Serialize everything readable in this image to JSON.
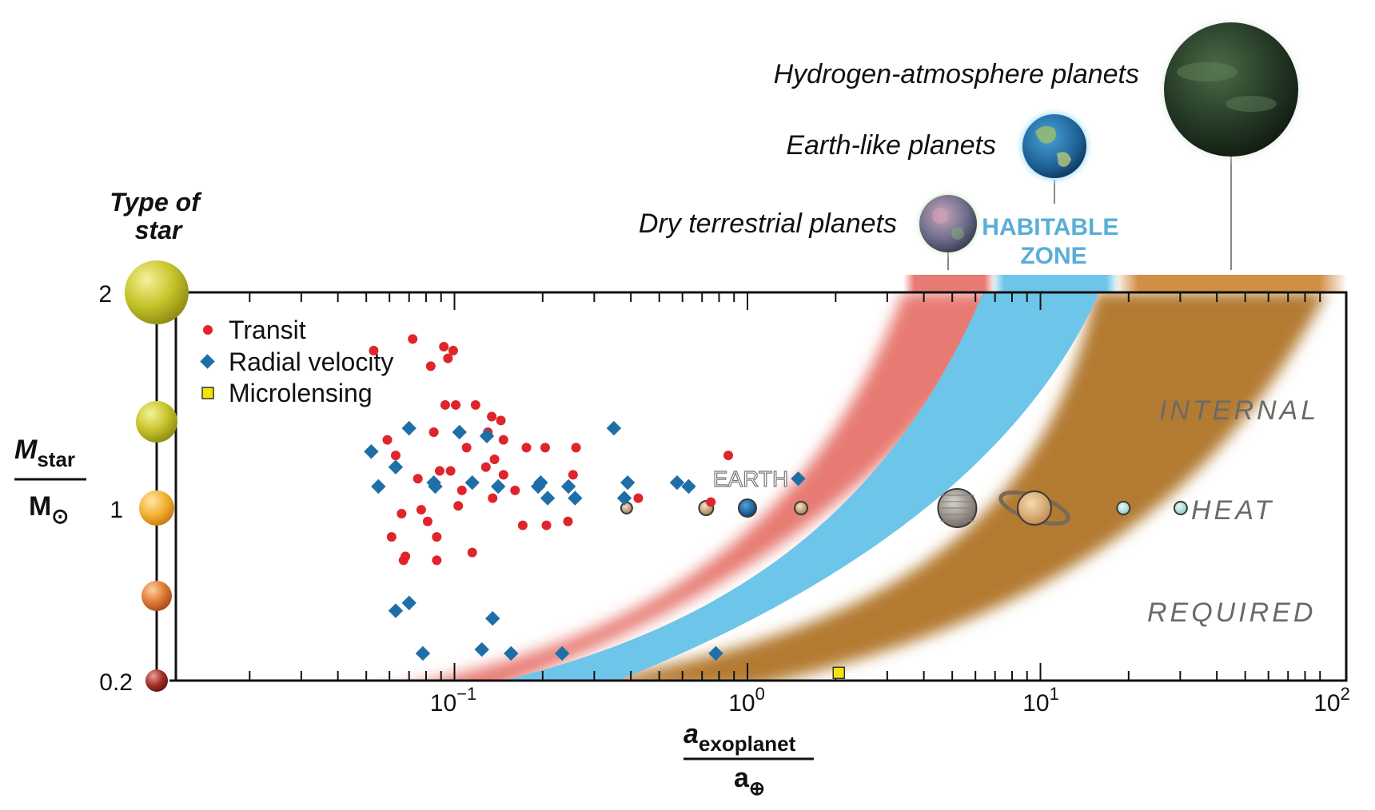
{
  "chart_data": {
    "type": "scatter",
    "x_scale": "log",
    "xlim": [
      0.01,
      100
    ],
    "y_ticks": [
      2,
      1,
      0.2
    ],
    "x_tick_labels": [
      {
        "value": 0.1,
        "base": "10",
        "exp": "−1"
      },
      {
        "value": 1,
        "base": "10",
        "exp": "0"
      },
      {
        "value": 10,
        "base": "10",
        "exp": "1"
      },
      {
        "value": 100,
        "base": "10",
        "exp": "2"
      }
    ],
    "x_axis_label": {
      "main": "a",
      "sub": "exoplanet",
      "denom": "a",
      "denom_sub": "⊕"
    },
    "y_axis_label": {
      "main": "M",
      "sub": "star",
      "denom": "M",
      "denom_sub": "⊙"
    },
    "star_type_title": [
      "Type of",
      "star"
    ],
    "legend": [
      {
        "name": "Transit",
        "marker": "circle",
        "color": "#e0242c"
      },
      {
        "name": "Radial velocity",
        "marker": "diamond",
        "color": "#1e6fa8"
      },
      {
        "name": "Microlensing",
        "marker": "square",
        "color": "#f2e600"
      }
    ],
    "legend_position": "top-left",
    "series": [
      {
        "name": "Transit",
        "points": [
          [
            0.053,
            0.85
          ],
          [
            0.059,
            0.62
          ],
          [
            0.063,
            0.58
          ],
          [
            0.066,
            0.43
          ],
          [
            0.061,
            0.37
          ],
          [
            0.067,
            0.31
          ],
          [
            0.068,
            0.32
          ],
          [
            0.072,
            0.88
          ],
          [
            0.075,
            0.52
          ],
          [
            0.077,
            0.44
          ],
          [
            0.081,
            0.41
          ],
          [
            0.083,
            0.81
          ],
          [
            0.085,
            0.64
          ],
          [
            0.087,
            0.37
          ],
          [
            0.087,
            0.31
          ],
          [
            0.089,
            0.54
          ],
          [
            0.092,
            0.86
          ],
          [
            0.093,
            0.71
          ],
          [
            0.095,
            0.83
          ],
          [
            0.097,
            0.54
          ],
          [
            0.099,
            0.85
          ],
          [
            0.103,
            0.45
          ],
          [
            0.101,
            0.71
          ],
          [
            0.106,
            0.49
          ],
          [
            0.11,
            0.6
          ],
          [
            0.115,
            0.33
          ],
          [
            0.118,
            0.71
          ],
          [
            0.128,
            0.55
          ],
          [
            0.13,
            0.64
          ],
          [
            0.134,
            0.68
          ],
          [
            0.135,
            0.47
          ],
          [
            0.137,
            0.57
          ],
          [
            0.144,
            0.67
          ],
          [
            0.147,
            0.62
          ],
          [
            0.147,
            0.53
          ],
          [
            0.161,
            0.49
          ],
          [
            0.171,
            0.4
          ],
          [
            0.176,
            0.6
          ],
          [
            0.206,
            0.4
          ],
          [
            0.204,
            0.6
          ],
          [
            0.244,
            0.41
          ],
          [
            0.254,
            0.53
          ],
          [
            0.26,
            0.6
          ],
          [
            0.424,
            0.47
          ],
          [
            0.75,
            0.46
          ],
          [
            0.86,
            0.58
          ]
        ]
      },
      {
        "name": "Radial velocity",
        "points": [
          [
            0.052,
            0.59
          ],
          [
            0.055,
            0.5
          ],
          [
            0.063,
            0.55
          ],
          [
            0.063,
            0.18
          ],
          [
            0.07,
            0.2
          ],
          [
            0.07,
            0.65
          ],
          [
            0.078,
            0.07
          ],
          [
            0.086,
            0.5
          ],
          [
            0.085,
            0.51
          ],
          [
            0.104,
            0.64
          ],
          [
            0.115,
            0.51
          ],
          [
            0.124,
            0.08
          ],
          [
            0.129,
            0.63
          ],
          [
            0.135,
            0.16
          ],
          [
            0.141,
            0.5
          ],
          [
            0.156,
            0.07
          ],
          [
            0.193,
            0.5
          ],
          [
            0.197,
            0.51
          ],
          [
            0.208,
            0.47
          ],
          [
            0.233,
            0.07
          ],
          [
            0.245,
            0.5
          ],
          [
            0.258,
            0.47
          ],
          [
            0.35,
            0.65
          ],
          [
            0.38,
            0.47
          ],
          [
            0.39,
            0.51
          ],
          [
            0.575,
            0.51
          ],
          [
            0.63,
            0.5
          ],
          [
            0.78,
            0.07
          ],
          [
            1.49,
            0.52
          ]
        ]
      },
      {
        "name": "Microlensing",
        "points": [
          [
            2.05,
            0.02
          ]
        ]
      }
    ],
    "solar_system": [
      {
        "name": "Mercury",
        "a": 0.387
      },
      {
        "name": "Venus",
        "a": 0.723
      },
      {
        "name": "Earth",
        "a": 1.0
      },
      {
        "name": "Mars",
        "a": 1.524
      },
      {
        "name": "Jupiter",
        "a": 5.2
      },
      {
        "name": "Saturn",
        "a": 9.54
      },
      {
        "name": "Uranus",
        "a": 19.2
      },
      {
        "name": "Neptune",
        "a": 30.1
      }
    ],
    "earth_label": "EARTH",
    "region_labels": [
      "INTERNAL",
      "HEAT",
      "REQUIRED"
    ],
    "planet_types": [
      "Hydrogen-atmosphere planets",
      "Earth-like planets",
      "Dry terrestrial planets"
    ],
    "habitable_zone_label": [
      "HABITABLE",
      "ZONE"
    ],
    "colors": {
      "dry_band": "#e77a72",
      "habitable_band": "#6ec5ea",
      "hydrogen_band": "#b37a33",
      "habitable_text": "#5aaed6"
    }
  }
}
